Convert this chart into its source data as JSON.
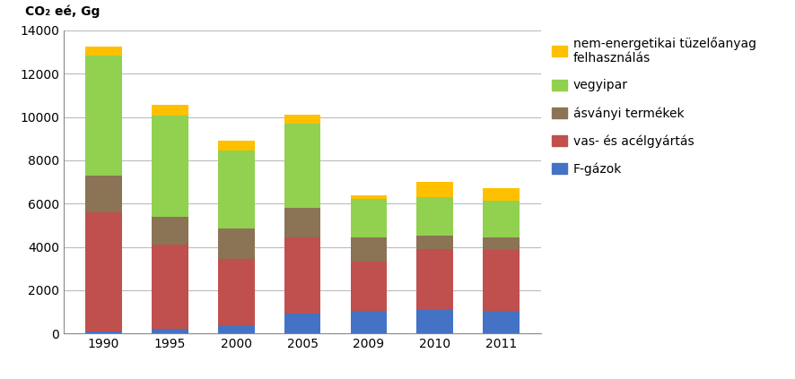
{
  "years": [
    "1990",
    "1995",
    "2000",
    "2005",
    "2009",
    "2010",
    "2011"
  ],
  "F_gazok": [
    100,
    200,
    400,
    900,
    1050,
    1100,
    1050
  ],
  "vas_acelgyartas": [
    5500,
    3900,
    3050,
    3550,
    2250,
    2800,
    2800
  ],
  "asvanyi_termekek": [
    1700,
    1300,
    1400,
    1350,
    1150,
    600,
    600
  ],
  "vegyipar": [
    5550,
    4650,
    3600,
    3900,
    1750,
    1800,
    1700
  ],
  "nem_energetikai": [
    400,
    500,
    450,
    400,
    200,
    700,
    550
  ],
  "colors": {
    "F_gazok": "#4472C4",
    "vas_acelgyartas": "#C0504D",
    "asvanyi_termekek": "#8B7355",
    "vegyipar": "#92D050",
    "nem_energetikai": "#FFC000"
  },
  "labels": {
    "F_gazok": "F-gázok",
    "vas_acelgyartas": "vas- és acélgyártás",
    "asvanyi_termekek": "ásványi termékek",
    "vegyipar": "vegyipar",
    "nem_energetikai": "nem-energetikai tüzelőanyag\nfelhasználás"
  },
  "ylabel": "CO₂ eé, Gg",
  "ylim": [
    0,
    14000
  ],
  "yticks": [
    0,
    2000,
    4000,
    6000,
    8000,
    10000,
    12000,
    14000
  ],
  "bar_width": 0.55,
  "background_color": "#FFFFFF",
  "grid_color": "#BBBBBB",
  "label_fontsize": 10,
  "tick_fontsize": 10,
  "legend_fontsize": 10
}
